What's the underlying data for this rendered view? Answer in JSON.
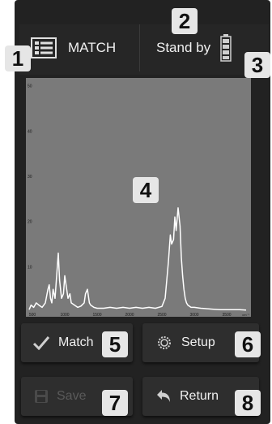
{
  "header": {
    "mode_label": "MATCH",
    "status_label": "Stand by"
  },
  "badges": [
    "1",
    "2",
    "3",
    "4",
    "5",
    "6",
    "7",
    "8"
  ],
  "chart_data": {
    "type": "line",
    "x_ticks": [
      "500",
      "1000",
      "1500",
      "2000",
      "2500",
      "3000",
      "3500"
    ],
    "x_unit": "cm⁻¹",
    "y_ticks": [
      "10",
      "20",
      "30",
      "40",
      "50"
    ],
    "xlim": [
      450,
      3800
    ],
    "ylim": [
      0,
      51
    ],
    "grid": false,
    "series": [
      {
        "x": [
          450,
          480,
          520,
          560,
          600,
          650,
          700,
          740,
          760,
          780,
          800,
          820,
          850,
          880,
          900,
          920,
          950,
          980,
          1000,
          1030,
          1050,
          1080,
          1100,
          1150,
          1200,
          1250,
          1300,
          1320,
          1350,
          1380,
          1400,
          1450,
          1500,
          1600,
          1700,
          1800,
          1900,
          2000,
          2100,
          2200,
          2300,
          2400,
          2500,
          2550,
          2600,
          2630,
          2650,
          2680,
          2700,
          2720,
          2750,
          2780,
          2800,
          2820,
          2840,
          2860,
          2880,
          2900,
          2950,
          3000,
          3100,
          3200,
          3300,
          3400,
          3500,
          3600,
          3700,
          3800
        ],
        "y": [
          0.5,
          1.5,
          1,
          2,
          1.5,
          1,
          2,
          5,
          6,
          3,
          2,
          5,
          3,
          9,
          13,
          7,
          3,
          4,
          8,
          5,
          3,
          4,
          2,
          1.5,
          1,
          1.3,
          2,
          4,
          5,
          2,
          1.5,
          1,
          0.8,
          0.8,
          1,
          0.8,
          1,
          0.8,
          1,
          0.8,
          1,
          0.8,
          1.2,
          3,
          11,
          17,
          15,
          16,
          21,
          18,
          23,
          19,
          12,
          8,
          5,
          3,
          2,
          1.5,
          1,
          1,
          0.8,
          0.7,
          0.6,
          0.5,
          0.5,
          0.5,
          0.5,
          0.4
        ]
      }
    ]
  },
  "buttons": {
    "match": "Match",
    "setup": "Setup",
    "save": "Save",
    "return": "Return"
  },
  "colors": {
    "plot_bg": "#7a7a7a",
    "trace": "#ffffff",
    "device": "#222222",
    "disabled": "#5a5a5a"
  }
}
